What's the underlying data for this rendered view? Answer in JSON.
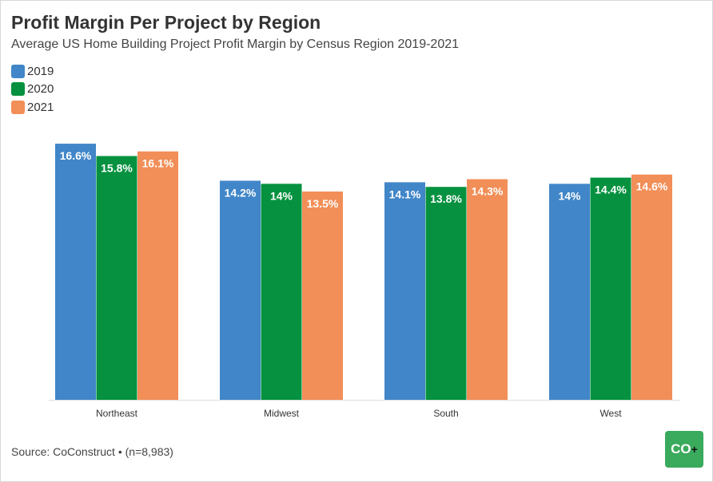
{
  "chart_data": {
    "type": "bar",
    "title": "Profit Margin Per Project by Region",
    "subtitle": "Average US Home Building Project Profit Margin by Census Region 2019-2021",
    "categories": [
      "Northeast",
      "Midwest",
      "South",
      "West"
    ],
    "series": [
      {
        "name": "2019",
        "color": "#4186c8",
        "values": [
          16.6,
          14.2,
          14.1,
          14
        ],
        "labels": [
          "16.6%",
          "14.2%",
          "14.1%",
          "14%"
        ]
      },
      {
        "name": "2020",
        "color": "#05913f",
        "values": [
          15.8,
          14,
          13.8,
          14.4
        ],
        "labels": [
          "15.8%",
          "14%",
          "13.8%",
          "14.4%"
        ]
      },
      {
        "name": "2021",
        "color": "#f28e57",
        "values": [
          16.1,
          13.5,
          14.3,
          14.6
        ],
        "labels": [
          "16.1%",
          "13.5%",
          "14.3%",
          "14.6%"
        ]
      }
    ],
    "ylim": [
      0,
      18
    ],
    "grid": false,
    "legend": "top-left",
    "xlabel": "",
    "ylabel": ""
  },
  "source": "Source: CoConstruct • (n=8,983)",
  "logo": {
    "text": "CO",
    "plus": "+",
    "color": "#3aaa5c"
  }
}
